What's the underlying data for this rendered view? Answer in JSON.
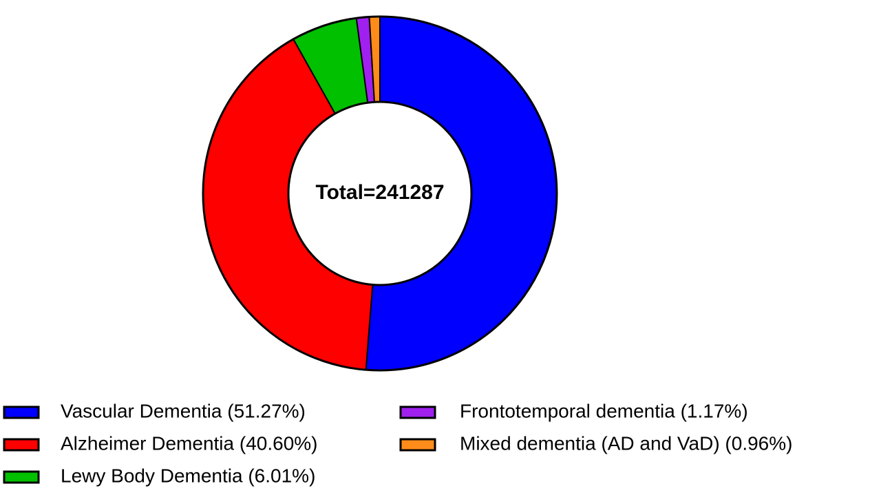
{
  "chart_data": {
    "type": "donut",
    "center_label": "Total=241287",
    "categories": [
      "Vascular Dementia (51.27%)",
      "Alzheimer Dementia (40.60%)",
      "Lewy Body Dementia (6.01%)",
      "Frontotemporal dementia (1.17%)",
      "Mixed dementia (AD and VaD) (0.96%)"
    ],
    "values": [
      51.27,
      40.6,
      6.01,
      1.17,
      0.96
    ],
    "colors": [
      "#0000ff",
      "#ff0000",
      "#00c000",
      "#a020f0",
      "#ff8c1a"
    ]
  }
}
